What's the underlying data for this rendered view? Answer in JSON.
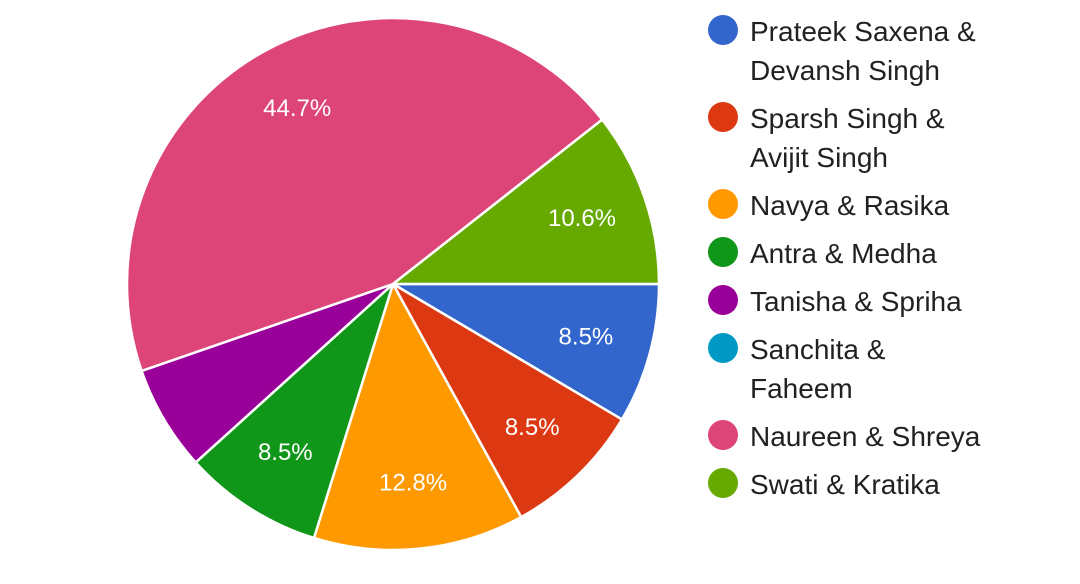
{
  "chart_data": {
    "type": "pie",
    "legend_position": "right",
    "slices": [
      {
        "name": "Prateek Saxena & Devansh Singh",
        "value": 8.5,
        "label": "8.5%",
        "color": "#3366cc"
      },
      {
        "name": "Sparsh Singh & Avijit Singh",
        "value": 8.5,
        "label": "8.5%",
        "color": "#dc3912"
      },
      {
        "name": "Navya & Rasika",
        "value": 12.8,
        "label": "12.8%",
        "color": "#ff9900"
      },
      {
        "name": "Antra & Medha",
        "value": 8.5,
        "label": "8.5%",
        "color": "#109618"
      },
      {
        "name": "Tanisha & Spriha",
        "value": 6.4,
        "label": "",
        "color": "#990099"
      },
      {
        "name": "Sanchita & Faheem",
        "value": 0,
        "label": "",
        "color": "#0099c6"
      },
      {
        "name": "Naureen & Shreya",
        "value": 44.7,
        "label": "44.7%",
        "color": "#dd4477"
      },
      {
        "name": "Swati & Kratika",
        "value": 10.6,
        "label": "10.6%",
        "color": "#66aa00"
      }
    ]
  },
  "legend": {
    "items": [
      {
        "lines": [
          "Prateek Saxena &",
          "Devansh Singh"
        ],
        "color": "#3366cc"
      },
      {
        "lines": [
          "Sparsh Singh &",
          "Avijit Singh"
        ],
        "color": "#dc3912"
      },
      {
        "lines": [
          "Navya & Rasika"
        ],
        "color": "#ff9900"
      },
      {
        "lines": [
          "Antra & Medha"
        ],
        "color": "#109618"
      },
      {
        "lines": [
          "Tanisha & Spriha"
        ],
        "color": "#990099"
      },
      {
        "lines": [
          "Sanchita &",
          "Faheem"
        ],
        "color": "#0099c6"
      },
      {
        "lines": [
          "Naureen & Shreya"
        ],
        "color": "#dd4477"
      },
      {
        "lines": [
          "Swati & Kratika"
        ],
        "color": "#66aa00"
      }
    ]
  }
}
